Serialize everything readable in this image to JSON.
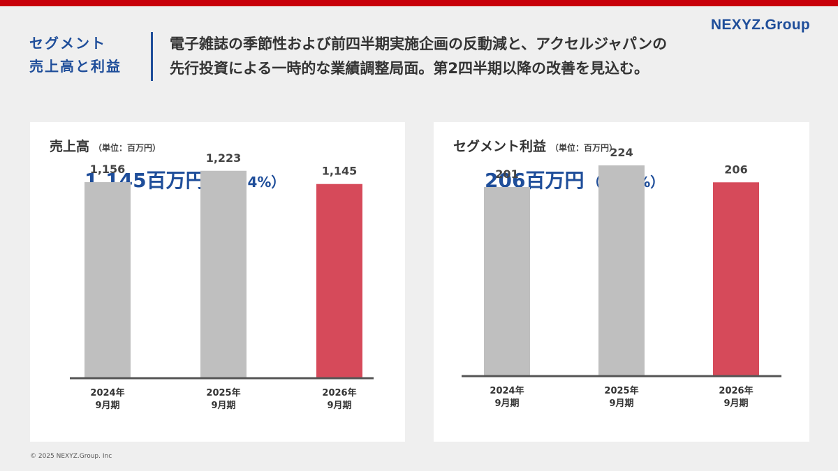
{
  "header": {
    "logo": "NEXYZ.Group",
    "section_line1": "セグメント",
    "section_line2": "売上高と利益",
    "headline_line1": "電子雑誌の季節性および前四半期実施企画の反動減と、アクセルジャパンの",
    "headline_line2": "先行投資による一時的な業績調整局面。第2四半期以降の改善を見込む。"
  },
  "colors": {
    "accent_blue": "#1f4e9a",
    "top_bar_red": "#c8000a",
    "bar_gray": "#bfbfbf",
    "bar_highlight": "#d64a5a",
    "axis": "#555555"
  },
  "chart_data": [
    {
      "type": "bar",
      "title": "売上高",
      "unit_label": "（単位：百万円）",
      "headline_value": "1,145百万円",
      "headline_change": "（△6.4%）",
      "categories": [
        {
          "line1": "2024年",
          "line2": "9月期"
        },
        {
          "line1": "2025年",
          "line2": "9月期"
        },
        {
          "line1": "2026年",
          "line2": "9月期"
        }
      ],
      "values": [
        1156,
        1223,
        1145
      ],
      "value_labels": [
        "1,156",
        "1,223",
        "1,145"
      ],
      "highlight_index": 2,
      "ylim": [
        0,
        1510
      ]
    },
    {
      "type": "bar",
      "title": "セグメント利益",
      "unit_label": "（単位：百万円）",
      "headline_value": "206百万円",
      "headline_change": "（△7.8%）",
      "categories": [
        {
          "line1": "2024年",
          "line2": "9月期"
        },
        {
          "line1": "2025年",
          "line2": "9月期"
        },
        {
          "line1": "2026年",
          "line2": "9月期"
        }
      ],
      "values": [
        201,
        224,
        206
      ],
      "value_labels": [
        "201",
        "224",
        "206"
      ],
      "highlight_index": 2,
      "ylim": [
        0,
        270
      ]
    }
  ],
  "footer": {
    "copyright": "© 2025 NEXYZ.Group. Inc"
  }
}
